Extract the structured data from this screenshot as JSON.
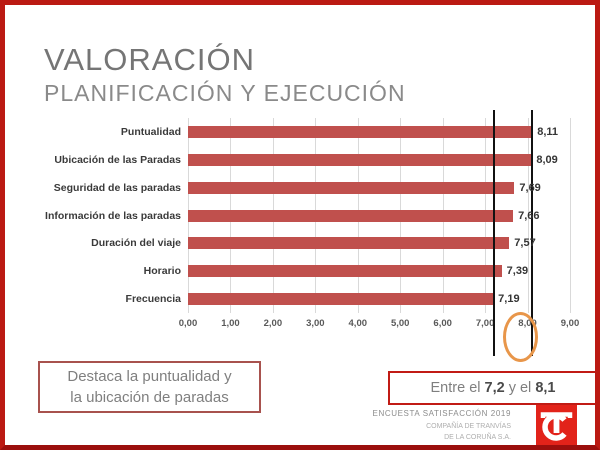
{
  "slide": {
    "title": "VALORACIÓN",
    "subtitle": "PLANIFICACIÓN Y EJECUCIÓN"
  },
  "chart_data": {
    "type": "bar",
    "orientation": "horizontal",
    "title": "",
    "categories": [
      "Puntualidad",
      "Ubicación de las Paradas",
      "Seguridad de las paradas",
      "Información de las paradas",
      "Duración del viaje",
      "Horario",
      "Frecuencia"
    ],
    "values": [
      8.11,
      8.09,
      7.69,
      7.66,
      7.57,
      7.39,
      7.19
    ],
    "value_labels": [
      "8,11",
      "8,09",
      "7,69",
      "7,66",
      "7,57",
      "7,39",
      "7,19"
    ],
    "xlim": [
      0,
      9
    ],
    "x_ticks": [
      "0,00",
      "1,00",
      "2,00",
      "3,00",
      "4,00",
      "5,00",
      "6,00",
      "7,00",
      "8,00",
      "9,00"
    ],
    "grid": true,
    "legend": "none",
    "bar_color": "#c0504d",
    "reference_lines": [
      7.2,
      8.1
    ],
    "highlight_ellipse_region": "between 7,00 and 8,00 ticks"
  },
  "callouts": {
    "left_box": {
      "line1": "Destaca la puntualidad  y",
      "line2": "la ubicación de paradas"
    },
    "right_box": {
      "prefix": "Entre el ",
      "value1": "7,2",
      "middle": " y el ",
      "value2": "8,1"
    }
  },
  "footer": {
    "line1": "ENCUESTA SATISFACCIÓN 2019",
    "line2": "COMPAÑÍA DE TRANVÍAS",
    "line3": "DE LA CORUÑA S.A."
  },
  "colors": {
    "slide_border": "#bb1a13",
    "bar": "#c0504d",
    "reference_line": "#111111",
    "ellipse": "#e8964a",
    "left_box_border": "#a8524e",
    "right_box_border": "#c11b15",
    "logo_red": "#e2231a",
    "title_gray": "#757575"
  }
}
